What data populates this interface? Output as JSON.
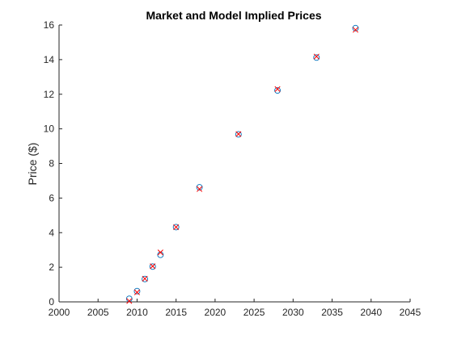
{
  "chart_data": {
    "type": "scatter",
    "title": "Market and Model Implied Prices",
    "xlabel": "",
    "ylabel": "Price ($)",
    "xlim": [
      2000,
      2045
    ],
    "ylim": [
      0,
      16
    ],
    "xticks": [
      2000,
      2005,
      2010,
      2015,
      2020,
      2025,
      2030,
      2035,
      2040,
      2045
    ],
    "yticks": [
      0,
      2,
      4,
      6,
      8,
      10,
      12,
      14,
      16
    ],
    "grid": false,
    "legend": "none",
    "series": [
      {
        "marker": "circle",
        "color": "#0072BD",
        "points": [
          {
            "x": 2009,
            "y": 0.18
          },
          {
            "x": 2010,
            "y": 0.62
          },
          {
            "x": 2011,
            "y": 1.32
          },
          {
            "x": 2012,
            "y": 2.04
          },
          {
            "x": 2013,
            "y": 2.72
          },
          {
            "x": 2015,
            "y": 4.32
          },
          {
            "x": 2018,
            "y": 6.62
          },
          {
            "x": 2023,
            "y": 9.68
          },
          {
            "x": 2028,
            "y": 12.22
          },
          {
            "x": 2033,
            "y": 14.12
          },
          {
            "x": 2038,
            "y": 15.82
          }
        ]
      },
      {
        "marker": "x",
        "color": "#FF0000",
        "points": [
          {
            "x": 2009,
            "y": 0.05
          },
          {
            "x": 2010,
            "y": 0.55
          },
          {
            "x": 2011,
            "y": 1.34
          },
          {
            "x": 2012,
            "y": 2.06
          },
          {
            "x": 2013,
            "y": 2.86
          },
          {
            "x": 2015,
            "y": 4.32
          },
          {
            "x": 2018,
            "y": 6.52
          },
          {
            "x": 2023,
            "y": 9.7
          },
          {
            "x": 2028,
            "y": 12.3
          },
          {
            "x": 2033,
            "y": 14.18
          },
          {
            "x": 2038,
            "y": 15.72
          }
        ]
      }
    ]
  }
}
